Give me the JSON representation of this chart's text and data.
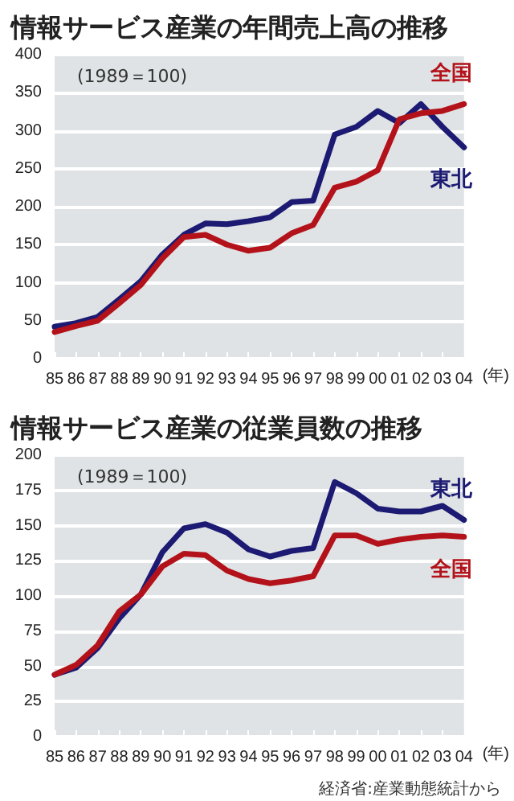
{
  "chart_data": [
    {
      "type": "line",
      "title": "情報サービス産業の年間売上高の推移",
      "xlabel": "(年)",
      "annotations": [
        "(1989＝100)"
      ],
      "categories": [
        "85",
        "86",
        "87",
        "88",
        "89",
        "90",
        "91",
        "92",
        "93",
        "94",
        "95",
        "96",
        "97",
        "98",
        "99",
        "00",
        "01",
        "02",
        "03",
        "04"
      ],
      "ylim": [
        0,
        400
      ],
      "yticks": [
        0,
        50,
        100,
        150,
        200,
        250,
        300,
        350,
        400
      ],
      "grid": "y",
      "legend": false,
      "marker": "none",
      "line_style": "solid",
      "series": [
        {
          "name": "東北",
          "color": "#1c1a72",
          "values": [
            42,
            47,
            55,
            78,
            102,
            137,
            163,
            178,
            177,
            181,
            186,
            206,
            208,
            295,
            305,
            326,
            310,
            335,
            305,
            278
          ]
        },
        {
          "name": "全国",
          "color": "#b3121a",
          "values": [
            35,
            43,
            50,
            73,
            97,
            132,
            160,
            163,
            150,
            142,
            146,
            165,
            176,
            225,
            233,
            248,
            315,
            323,
            326,
            335
          ]
        }
      ]
    },
    {
      "type": "line",
      "title": "情報サービス産業の従業員数の推移",
      "xlabel": "(年)",
      "annotations": [
        "(1989＝100)",
        "経済省:産業動態統計から"
      ],
      "categories": [
        "85",
        "86",
        "87",
        "88",
        "89",
        "90",
        "91",
        "92",
        "93",
        "94",
        "95",
        "96",
        "97",
        "98",
        "99",
        "00",
        "01",
        "02",
        "03",
        "04"
      ],
      "ylim": [
        0,
        200
      ],
      "yticks": [
        0,
        25,
        50,
        75,
        100,
        125,
        150,
        175,
        200
      ],
      "grid": "y",
      "legend": false,
      "marker": "none",
      "line_style": "solid",
      "series": [
        {
          "name": "東北",
          "color": "#1c1a72",
          "values": [
            44,
            49,
            63,
            84,
            101,
            131,
            148,
            151,
            145,
            133,
            128,
            132,
            134,
            181,
            173,
            162,
            160,
            160,
            164,
            154
          ]
        },
        {
          "name": "全国",
          "color": "#b3121a",
          "values": [
            44,
            51,
            65,
            89,
            101,
            121,
            130,
            129,
            118,
            112,
            109,
            111,
            114,
            143,
            143,
            137,
            140,
            142,
            143,
            142
          ]
        }
      ]
    }
  ]
}
